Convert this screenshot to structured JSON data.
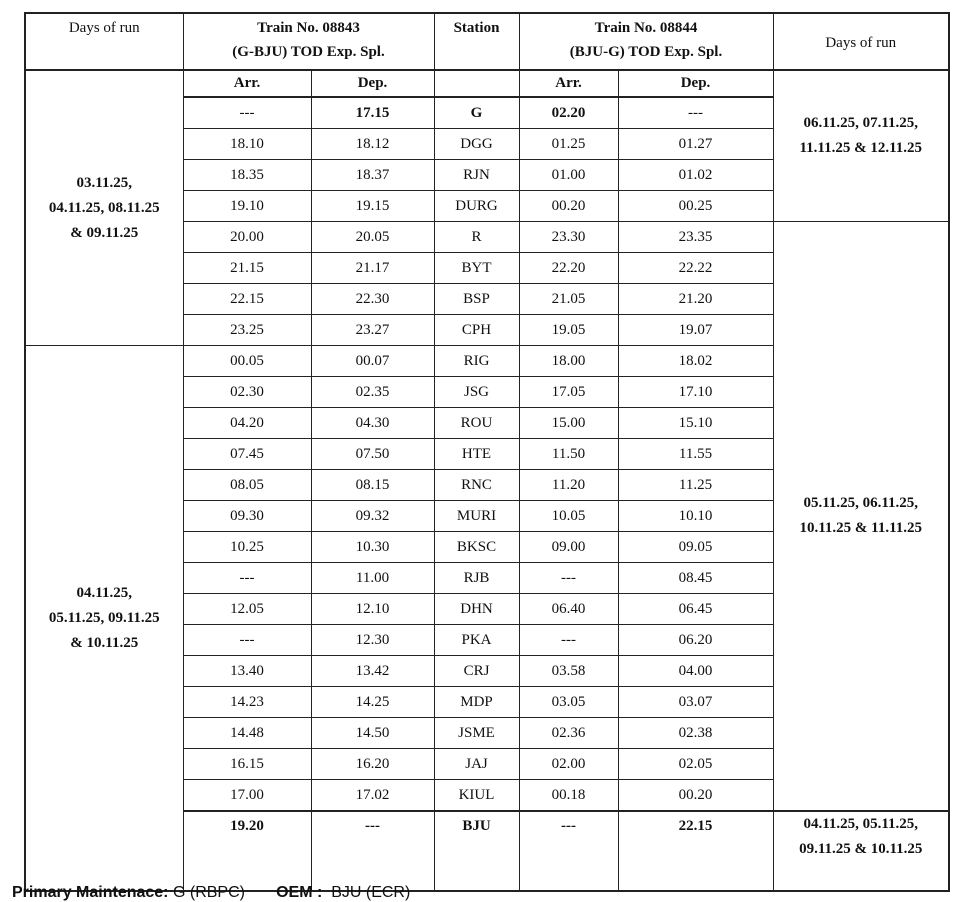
{
  "header": {
    "days_left": "Days of run",
    "train1_no": "Train No.  08843",
    "train1_name": "(G-BJU) TOD Exp. Spl.",
    "station": "Station",
    "train2_no": "Train No. 08844",
    "train2_name": "(BJU-G) TOD Exp. Spl.",
    "days_right": "Days of run"
  },
  "sub": {
    "arr": "Arr.",
    "dep": "Dep."
  },
  "days_left": [
    "03.11.25,\n04.11.25, 08.11.25\n& 09.11.25",
    "04.11.25,\n05.11.25, 09.11.25\n& 10.11.25"
  ],
  "days_right": [
    "06.11.25, 07.11.25,\n11.11.25 & 12.11.25",
    "05.11.25, 06.11.25,\n10.11.25 & 11.11.25",
    "04.11.25, 05.11.25,\n09.11.25 & 10.11.25"
  ],
  "rows": [
    [
      "---",
      "17.15",
      "G",
      "02.20",
      "---"
    ],
    [
      "18.10",
      "18.12",
      "DGG",
      "01.25",
      "01.27"
    ],
    [
      "18.35",
      "18.37",
      "RJN",
      "01.00",
      "01.02"
    ],
    [
      "19.10",
      "19.15",
      "DURG",
      "00.20",
      "00.25"
    ],
    [
      "20.00",
      "20.05",
      "R",
      "23.30",
      "23.35"
    ],
    [
      "21.15",
      "21.17",
      "BYT",
      "22.20",
      "22.22"
    ],
    [
      "22.15",
      "22.30",
      "BSP",
      "21.05",
      "21.20"
    ],
    [
      "23.25",
      "23.27",
      "CPH",
      "19.05",
      "19.07"
    ],
    [
      "00.05",
      "00.07",
      "RIG",
      "18.00",
      "18.02"
    ],
    [
      "02.30",
      "02.35",
      "JSG",
      "17.05",
      "17.10"
    ],
    [
      "04.20",
      "04.30",
      "ROU",
      "15.00",
      "15.10"
    ],
    [
      "07.45",
      "07.50",
      "HTE",
      "11.50",
      "11.55"
    ],
    [
      "08.05",
      "08.15",
      "RNC",
      "11.20",
      "11.25"
    ],
    [
      "09.30",
      "09.32",
      "MURI",
      "10.05",
      "10.10"
    ],
    [
      "10.25",
      "10.30",
      "BKSC",
      "09.00",
      "09.05"
    ],
    [
      "---",
      "11.00",
      "RJB",
      "---",
      "08.45"
    ],
    [
      "12.05",
      "12.10",
      "DHN",
      "06.40",
      "06.45"
    ],
    [
      "---",
      "12.30",
      "PKA",
      "---",
      "06.20"
    ],
    [
      "13.40",
      "13.42",
      "CRJ",
      "03.58",
      "04.00"
    ],
    [
      "14.23",
      "14.25",
      "MDP",
      "03.05",
      "03.07"
    ],
    [
      "14.48",
      "14.50",
      "JSME",
      "02.36",
      "02.38"
    ],
    [
      "16.15",
      "16.20",
      "JAJ",
      "02.00",
      "02.05"
    ],
    [
      "17.00",
      "17.02",
      "KIUL",
      "00.18",
      "00.20"
    ],
    [
      "19.20",
      "---",
      "BJU",
      "---",
      "22.15"
    ]
  ],
  "footer": {
    "maint_label": "Primary Maintenace:",
    "maint_value": "G (RBPC)",
    "oem_label": "OEM :",
    "oem_value": "BJU (ECR)"
  }
}
